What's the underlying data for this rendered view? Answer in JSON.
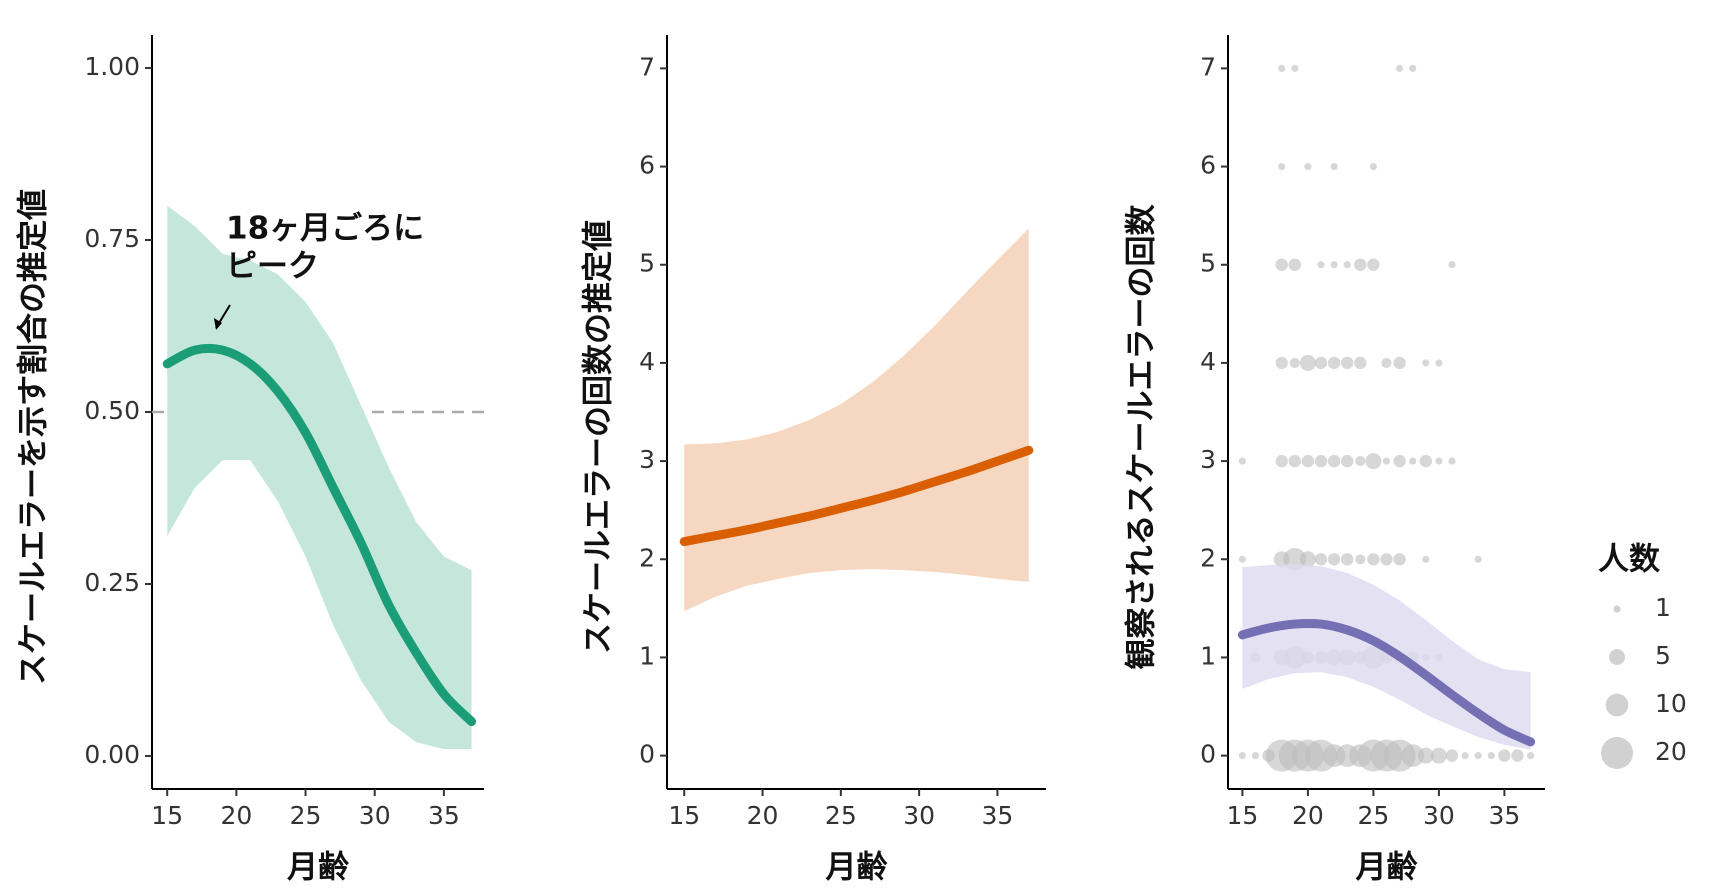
{
  "chart_data": [
    {
      "type": "line",
      "xlabel": "月齢",
      "ylabel": "スケールエラーを示す割合の推定値",
      "xlim": [
        13.9,
        37.9
      ],
      "ylim": [
        -0.048,
        1.048
      ],
      "xticks": [
        15,
        20,
        25,
        30,
        35
      ],
      "yticks": [
        {
          "value": 0,
          "label": "0.00"
        },
        {
          "value": 0.25,
          "label": "0.25"
        },
        {
          "value": 0.5,
          "label": "0.50"
        },
        {
          "value": 0.75,
          "label": "0.75"
        },
        {
          "value": 1,
          "label": "1.00"
        }
      ],
      "hline": 0.5,
      "annotation": [
        "18ヶ月ごろに",
        "ピーク"
      ],
      "x": [
        15,
        17,
        19,
        21,
        23,
        25,
        27,
        29,
        31,
        33,
        35,
        37
      ],
      "series": [
        {
          "color": "#1b9e77",
          "band_color": "#c5e7db",
          "values": [
            0.57,
            0.59,
            0.59,
            0.57,
            0.53,
            0.47,
            0.39,
            0.31,
            0.22,
            0.15,
            0.09,
            0.05
          ],
          "upper": [
            0.8,
            0.77,
            0.73,
            0.72,
            0.7,
            0.66,
            0.6,
            0.51,
            0.42,
            0.34,
            0.29,
            0.27
          ],
          "lower": [
            0.32,
            0.39,
            0.43,
            0.43,
            0.37,
            0.29,
            0.19,
            0.11,
            0.05,
            0.02,
            0.01,
            0.01
          ]
        }
      ]
    },
    {
      "type": "line",
      "xlabel": "月齢",
      "ylabel": "スケールエラーの回数の推定値",
      "xlim": [
        13.9,
        38.1
      ],
      "ylim": [
        -0.34,
        7.34
      ],
      "xticks": [
        15,
        20,
        25,
        30,
        35
      ],
      "yticks": [
        0,
        1,
        2,
        3,
        4,
        5,
        6,
        7
      ],
      "x": [
        15,
        17,
        19,
        21,
        23,
        25,
        27,
        29,
        31,
        33,
        35,
        37
      ],
      "series": [
        {
          "color": "#d95f02",
          "band_color": "#f6d8c2",
          "values": [
            2.18,
            2.24,
            2.3,
            2.37,
            2.44,
            2.52,
            2.6,
            2.69,
            2.79,
            2.89,
            3.0,
            3.11
          ],
          "upper": [
            3.17,
            3.18,
            3.22,
            3.3,
            3.42,
            3.58,
            3.8,
            4.07,
            4.38,
            4.72,
            5.05,
            5.37
          ],
          "lower": [
            1.47,
            1.62,
            1.73,
            1.8,
            1.86,
            1.89,
            1.9,
            1.89,
            1.87,
            1.84,
            1.8,
            1.77
          ]
        }
      ]
    },
    {
      "type": "line",
      "xlabel": "月齢",
      "ylabel": "観察されるスケールエラーの回数",
      "xlim": [
        13.9,
        38.1
      ],
      "ylim": [
        -0.34,
        7.34
      ],
      "xticks": [
        15,
        20,
        25,
        30,
        35
      ],
      "yticks": [
        0,
        1,
        2,
        3,
        4,
        5,
        6,
        7
      ],
      "x": [
        15,
        17,
        19,
        21,
        23,
        25,
        27,
        29,
        31,
        33,
        35,
        37
      ],
      "series": [
        {
          "color": "#7570b3",
          "band_color": "#dcdaef",
          "values": [
            1.23,
            1.3,
            1.34,
            1.34,
            1.28,
            1.17,
            1.01,
            0.82,
            0.62,
            0.43,
            0.26,
            0.14
          ],
          "upper": [
            1.92,
            1.94,
            1.95,
            1.93,
            1.86,
            1.74,
            1.58,
            1.38,
            1.17,
            0.98,
            0.88,
            0.85
          ],
          "lower": [
            0.68,
            0.78,
            0.84,
            0.85,
            0.8,
            0.7,
            0.57,
            0.42,
            0.3,
            0.19,
            0.11,
            0.06
          ]
        }
      ],
      "scatter": {
        "color": "#bdbdbd",
        "x": [
          18,
          19,
          27,
          28,
          18,
          20,
          22,
          25,
          18,
          19,
          21,
          22,
          23,
          24,
          25,
          31,
          18,
          19,
          20,
          21,
          22,
          23,
          24,
          26,
          27,
          29,
          30,
          15,
          18,
          19,
          20,
          21,
          22,
          23,
          24,
          25,
          26,
          27,
          28,
          29,
          30,
          31,
          15,
          18,
          19,
          20,
          21,
          22,
          23,
          24,
          25,
          26,
          27,
          29,
          33,
          16,
          18,
          19,
          20,
          21,
          22,
          23,
          24,
          25,
          26,
          27,
          28,
          29,
          30,
          15,
          16,
          17,
          18,
          19,
          20,
          21,
          22,
          23,
          24,
          25,
          26,
          27,
          28,
          29,
          30,
          31,
          32,
          33,
          34,
          35,
          36,
          37
        ],
        "y": [
          7,
          7,
          7,
          7,
          6,
          6,
          6,
          6,
          5,
          5,
          5,
          5,
          5,
          5,
          5,
          5,
          4,
          4,
          4,
          4,
          4,
          4,
          4,
          4,
          4,
          4,
          4,
          3,
          3,
          3,
          3,
          3,
          3,
          3,
          3,
          3,
          3,
          3,
          3,
          3,
          3,
          3,
          2,
          2,
          2,
          2,
          2,
          2,
          2,
          2,
          2,
          2,
          2,
          2,
          2,
          1,
          1,
          1,
          1,
          1,
          1,
          1,
          1,
          1,
          1,
          1,
          1,
          1,
          1,
          0,
          0,
          0,
          0,
          0,
          0,
          0,
          0,
          0,
          0,
          0,
          0,
          0,
          0,
          0,
          0,
          0,
          0,
          0,
          0,
          0,
          0,
          0
        ],
        "size": [
          1,
          1,
          1,
          1,
          1,
          1,
          1,
          1,
          3,
          3,
          1,
          1,
          1,
          3,
          3,
          1,
          3,
          2,
          5,
          3,
          3,
          3,
          3,
          2,
          3,
          1,
          1,
          1,
          3,
          3,
          3,
          3,
          3,
          3,
          2,
          5,
          1,
          3,
          1,
          3,
          1,
          1,
          1,
          5,
          10,
          5,
          3,
          3,
          3,
          2,
          3,
          3,
          3,
          1,
          1,
          2,
          5,
          10,
          3,
          3,
          5,
          5,
          3,
          10,
          3,
          3,
          3,
          1,
          1,
          1,
          1,
          3,
          20,
          20,
          20,
          20,
          10,
          10,
          10,
          20,
          20,
          20,
          10,
          5,
          5,
          3,
          1,
          1,
          1,
          3,
          3,
          1
        ]
      },
      "size_legend": {
        "title": "人数",
        "values": [
          1,
          5,
          10,
          20
        ]
      }
    }
  ]
}
